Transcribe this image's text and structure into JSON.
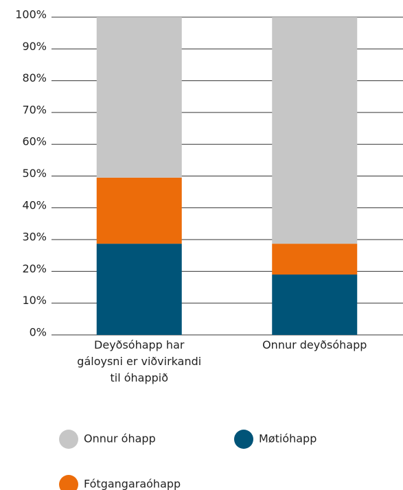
{
  "chart_data": {
    "type": "stacked_bar",
    "categories": [
      "Deyðsóhapp har gáloysni er viðvirkandi til óhappið",
      "Onnur deyðsóhapp"
    ],
    "series": [
      {
        "name": "Møtióhapp",
        "color": "#005478",
        "values": [
          28.7,
          19.0
        ]
      },
      {
        "name": "Fótgangaraóhapp",
        "color": "#ec6c0a",
        "values": [
          20.8,
          9.7
        ]
      },
      {
        "name": "Onnur óhapp",
        "color": "#c6c6c6",
        "values": [
          50.5,
          71.3
        ]
      }
    ],
    "ylim": [
      0,
      100
    ],
    "yticks": [
      {
        "value": 0,
        "label": "0%"
      },
      {
        "value": 10,
        "label": "10%"
      },
      {
        "value": 20,
        "label": "20%"
      },
      {
        "value": 30,
        "label": "30%"
      },
      {
        "value": 40,
        "label": "40%"
      },
      {
        "value": 50,
        "label": "50%"
      },
      {
        "value": 60,
        "label": "60%"
      },
      {
        "value": 70,
        "label": "70%"
      },
      {
        "value": 80,
        "label": "80%"
      },
      {
        "value": 90,
        "label": "90%"
      },
      {
        "value": 100,
        "label": "100%"
      }
    ],
    "grid": true
  }
}
